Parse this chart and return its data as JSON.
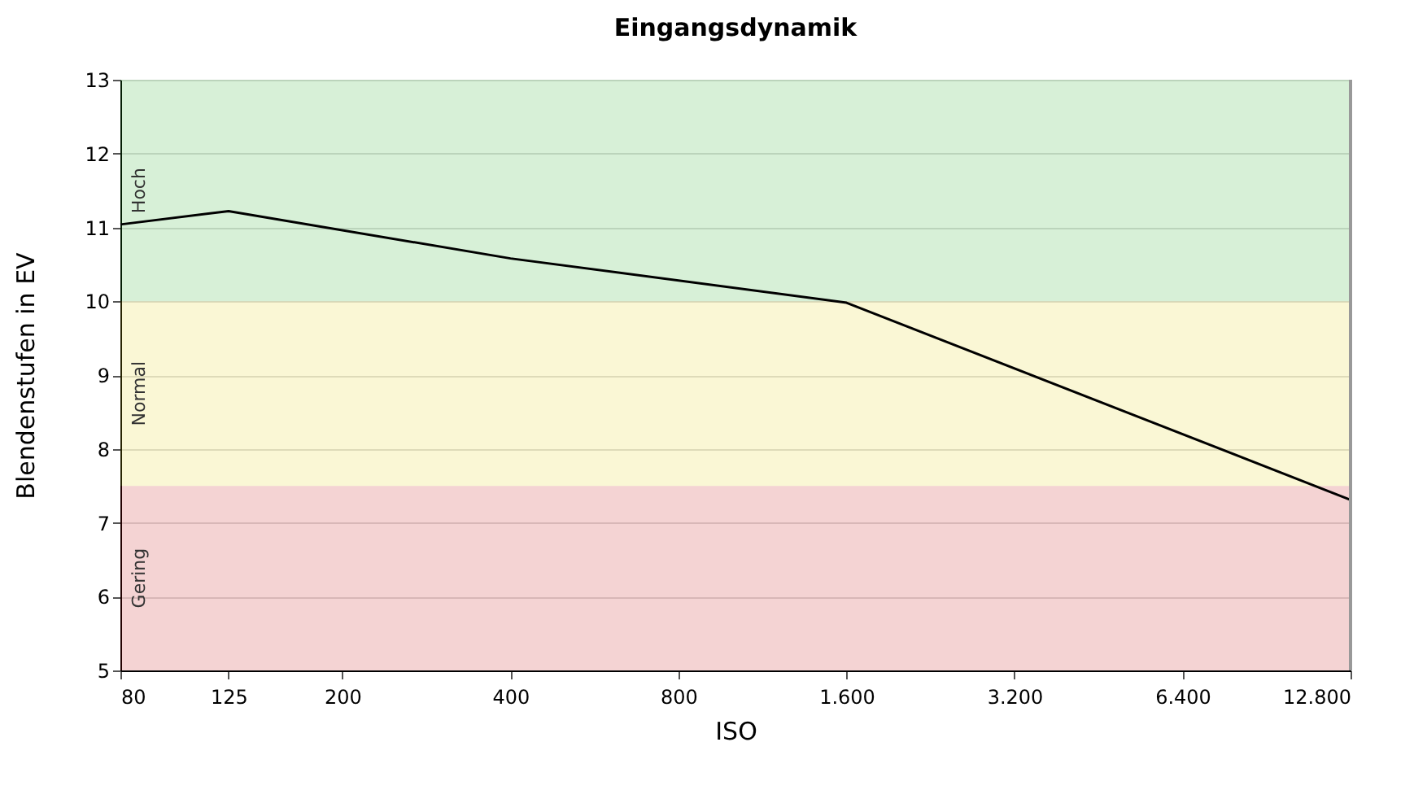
{
  "chart_data": {
    "type": "line",
    "title": "Eingangsdynamik",
    "xlabel": "ISO",
    "ylabel": "Blendenstufen in EV",
    "x": [
      80,
      125,
      400,
      1600,
      12800
    ],
    "series": [
      {
        "color": "#000000",
        "values": [
          11.04,
          11.22,
          10.58,
          9.98,
          7.31
        ]
      }
    ],
    "log": "x",
    "xlim": [
      80,
      12800
    ],
    "xticks": [
      80,
      125,
      200,
      400,
      800,
      {
        "value": 1600,
        "label": "1.600"
      },
      {
        "value": 3200,
        "label": "3.200"
      },
      {
        "value": 6400,
        "label": "6.400"
      },
      {
        "value": 12800,
        "label": "12.800"
      }
    ],
    "ylim": [
      5,
      13
    ],
    "yticks": [
      5,
      6,
      7,
      8,
      9,
      10,
      11,
      12,
      13
    ],
    "grid": "y",
    "bands": [
      {
        "axis": "y",
        "from": 5,
        "to": 7.5,
        "label": "Gering",
        "color": "#c40a0a"
      },
      {
        "axis": "y",
        "from": 7.5,
        "to": 10,
        "label": "Normal",
        "color": "#e3d414"
      },
      {
        "axis": "y",
        "from": 10,
        "to": 13,
        "label": "Hoch",
        "color": "#1fae22"
      }
    ]
  }
}
